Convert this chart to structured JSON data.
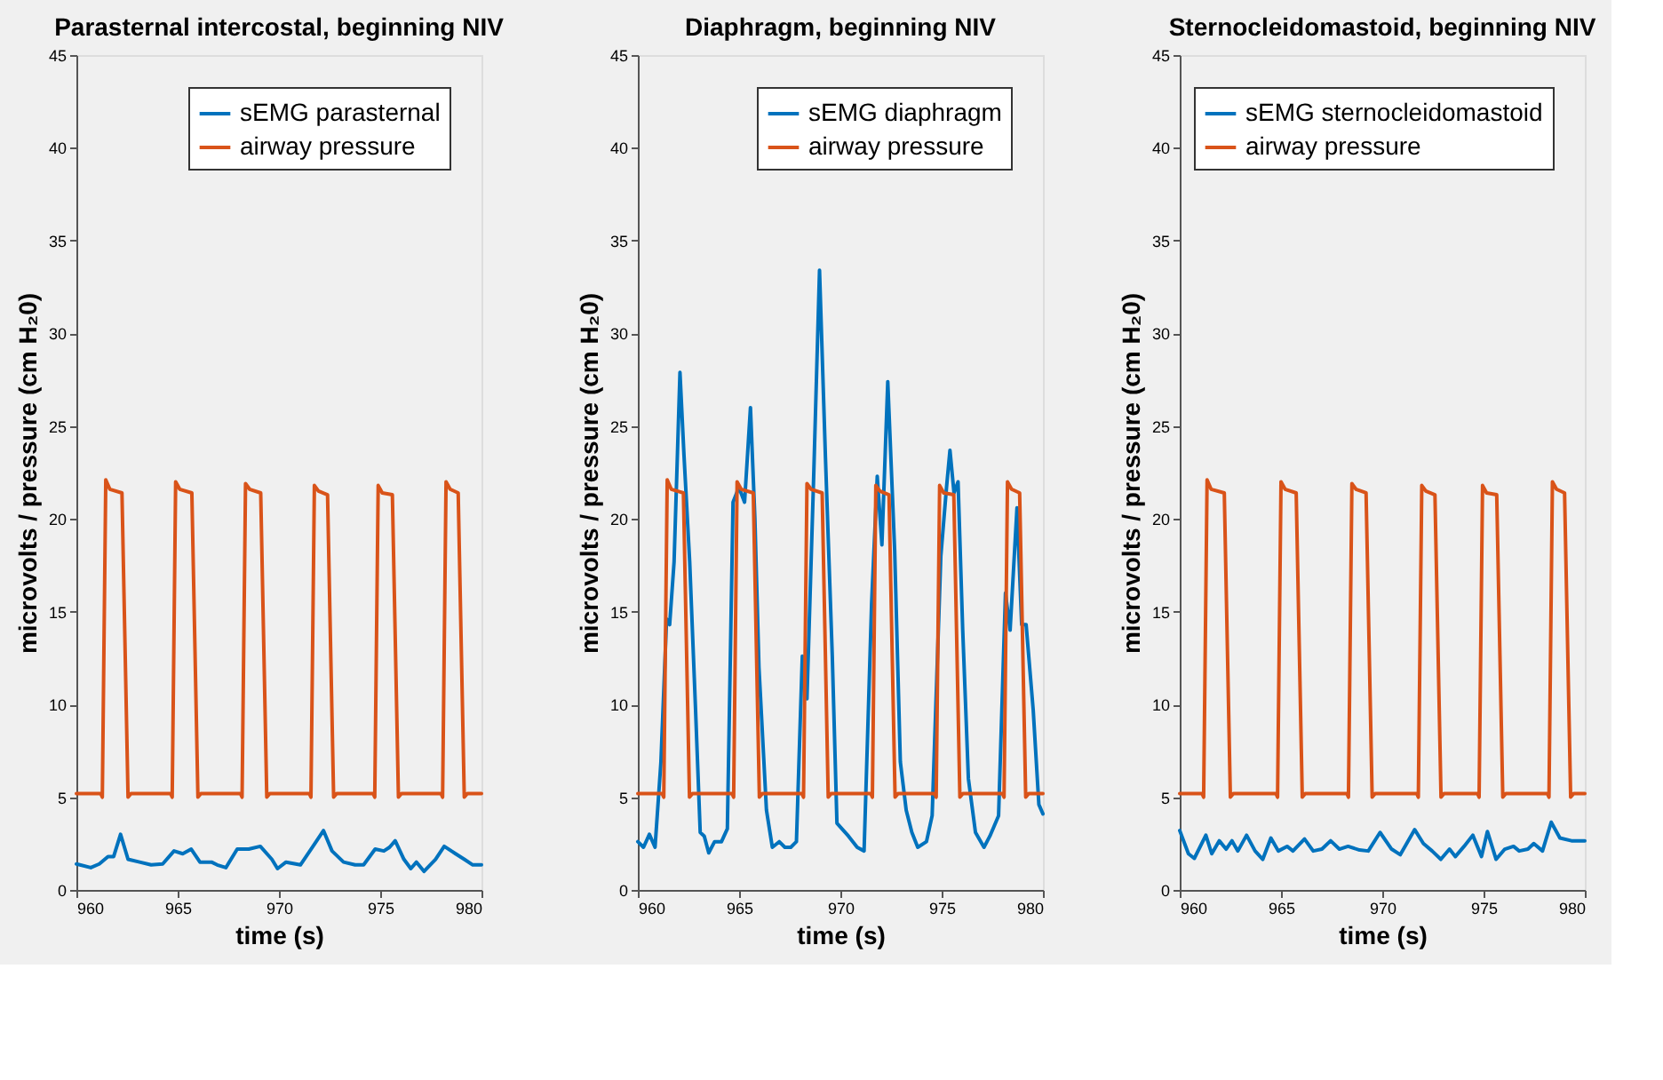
{
  "chart_data": [
    {
      "type": "line",
      "title": "Parasternal intercostal, beginning NIV",
      "xlabel": "time (s)",
      "ylabel": "microvolts / pressure (cm H₂0)",
      "xlim": [
        960,
        980
      ],
      "xticks": [
        960,
        965,
        970,
        975,
        980
      ],
      "ylim": [
        0,
        45
      ],
      "yticks": [
        0,
        5,
        10,
        15,
        20,
        25,
        30,
        35,
        40,
        45
      ],
      "grid": false,
      "legend": "top right",
      "line_style": "solid",
      "marker": "none",
      "series": [
        {
          "name": "sEMG parasternal",
          "color": "#0072bd",
          "x": [
            960,
            960.71,
            961.13,
            961.56,
            961.84,
            962.18,
            962.55,
            963.12,
            963.69,
            964.26,
            964.82,
            965.25,
            965.67,
            966.1,
            966.67,
            966.95,
            967.38,
            967.94,
            968.51,
            969.08,
            969.65,
            969.93,
            970.35,
            971.06,
            971.77,
            972.2,
            972.62,
            973.19,
            973.76,
            974.18,
            974.75,
            975.18,
            975.46,
            975.74,
            976.17,
            976.51,
            976.79,
            977.16,
            977.73,
            978.16,
            978.72,
            979.15,
            979.57,
            980
          ],
          "values": [
            1.4,
            1.2,
            1.4,
            1.8,
            1.8,
            3.0,
            1.65,
            1.5,
            1.35,
            1.4,
            2.1,
            1.95,
            2.2,
            1.5,
            1.5,
            1.35,
            1.2,
            2.2,
            2.2,
            2.35,
            1.65,
            1.15,
            1.5,
            1.35,
            2.5,
            3.2,
            2.1,
            1.5,
            1.35,
            1.35,
            2.2,
            2.1,
            2.3,
            2.65,
            1.65,
            1.15,
            1.5,
            1.0,
            1.65,
            2.35,
            1.95,
            1.65,
            1.35,
            1.35
          ]
        },
        {
          "name": "airway pressure",
          "color": "#d95319",
          "x": [
            960,
            961.2,
            961.28,
            961.45,
            961.65,
            962.25,
            962.55,
            962.7,
            964.65,
            964.73,
            964.9,
            965.1,
            965.7,
            966.0,
            966.15,
            968.1,
            968.18,
            968.35,
            968.55,
            969.1,
            969.4,
            969.55,
            971.5,
            971.58,
            971.75,
            971.95,
            972.4,
            972.7,
            972.85,
            974.65,
            974.73,
            974.9,
            975.1,
            975.6,
            975.9,
            976.05,
            978.0,
            978.08,
            978.25,
            978.45,
            978.85,
            979.15,
            979.3,
            980
          ],
          "values": [
            5.2,
            5.2,
            5.0,
            22.1,
            21.6,
            21.4,
            5.0,
            5.2,
            5.2,
            5.0,
            22.0,
            21.6,
            21.4,
            5.0,
            5.2,
            5.2,
            5.0,
            21.9,
            21.6,
            21.4,
            5.0,
            5.2,
            5.2,
            5.0,
            21.8,
            21.5,
            21.3,
            5.0,
            5.2,
            5.2,
            5.0,
            21.8,
            21.4,
            21.3,
            5.0,
            5.2,
            5.2,
            5.0,
            22.0,
            21.6,
            21.4,
            5.0,
            5.2,
            5.2
          ]
        }
      ]
    },
    {
      "type": "line",
      "title": "Diaphragm, beginning NIV",
      "xlabel": "time (s)",
      "ylabel": "microvolts / pressure (cm H₂0)",
      "xlim": [
        960,
        980
      ],
      "xticks": [
        960,
        965,
        970,
        975,
        980
      ],
      "ylim": [
        0,
        45
      ],
      "yticks": [
        0,
        5,
        10,
        15,
        20,
        25,
        30,
        35,
        40,
        45
      ],
      "grid": false,
      "legend": "top right",
      "line_style": "solid",
      "marker": "none",
      "series": [
        {
          "name": "sEMG diaphragm",
          "color": "#0072bd",
          "x": [
            960,
            960.28,
            960.57,
            960.85,
            961.14,
            961.42,
            961.57,
            961.79,
            962.08,
            962.28,
            962.56,
            962.85,
            963.08,
            963.28,
            963.5,
            963.79,
            964.13,
            964.42,
            964.7,
            964.99,
            965.27,
            965.56,
            965.78,
            965.98,
            966.35,
            966.64,
            966.98,
            967.26,
            967.55,
            967.83,
            968.12,
            968.35,
            968.69,
            968.97,
            969.26,
            969.6,
            969.83,
            970.4,
            970.83,
            971.17,
            971.54,
            971.82,
            972.05,
            972.34,
            972.68,
            972.96,
            973.25,
            973.53,
            973.82,
            974.25,
            974.53,
            974.96,
            975.24,
            975.41,
            975.61,
            975.81,
            976.04,
            976.32,
            976.67,
            977.09,
            977.38,
            977.81,
            978.15,
            978.38,
            978.72,
            978.95,
            979.17,
            979.52,
            979.8,
            980
          ],
          "values": [
            2.6,
            2.3,
            3.0,
            2.3,
            6.9,
            14.6,
            14.3,
            17.7,
            27.9,
            23.4,
            17.7,
            9.7,
            3.1,
            2.9,
            2.0,
            2.6,
            2.6,
            3.3,
            20.9,
            21.7,
            20.9,
            26.0,
            20.0,
            12.0,
            4.3,
            2.3,
            2.6,
            2.3,
            2.3,
            2.6,
            12.6,
            10.3,
            22.6,
            33.4,
            23.4,
            12.6,
            3.6,
            2.9,
            2.3,
            2.1,
            15.4,
            22.3,
            18.6,
            27.4,
            18.3,
            6.9,
            4.3,
            3.1,
            2.3,
            2.6,
            4.0,
            18.0,
            21.7,
            23.7,
            21.4,
            22.0,
            14.0,
            6.0,
            3.1,
            2.3,
            2.9,
            4.0,
            16.0,
            14.0,
            20.6,
            14.3,
            14.3,
            9.7,
            4.6,
            4.1
          ]
        },
        {
          "name": "airway pressure",
          "color": "#d95319",
          "x": [
            960,
            961.2,
            961.28,
            961.45,
            961.65,
            962.25,
            962.55,
            962.7,
            964.65,
            964.73,
            964.9,
            965.1,
            965.7,
            966.0,
            966.15,
            968.1,
            968.18,
            968.35,
            968.55,
            969.1,
            969.4,
            969.55,
            971.5,
            971.58,
            971.75,
            971.95,
            972.4,
            972.7,
            972.85,
            974.65,
            974.73,
            974.9,
            975.1,
            975.6,
            975.9,
            976.05,
            978.0,
            978.08,
            978.25,
            978.45,
            978.85,
            979.15,
            979.3,
            980
          ],
          "values": [
            5.2,
            5.2,
            5.0,
            22.1,
            21.6,
            21.4,
            5.0,
            5.2,
            5.2,
            5.0,
            22.0,
            21.6,
            21.4,
            5.0,
            5.2,
            5.2,
            5.0,
            21.9,
            21.6,
            21.4,
            5.0,
            5.2,
            5.2,
            5.0,
            21.8,
            21.5,
            21.3,
            5.0,
            5.2,
            5.2,
            5.0,
            21.8,
            21.4,
            21.3,
            5.0,
            5.2,
            5.2,
            5.0,
            22.0,
            21.6,
            21.4,
            5.0,
            5.2,
            5.2
          ]
        }
      ]
    },
    {
      "type": "line",
      "title": "Sternocleidomastoid, beginning NIV",
      "xlabel": "time (s)",
      "ylabel": "microvolts / pressure (cm H₂0)",
      "xlim": [
        960,
        980
      ],
      "xticks": [
        960,
        965,
        970,
        975,
        980
      ],
      "ylim": [
        0,
        45
      ],
      "yticks": [
        0,
        5,
        10,
        15,
        20,
        25,
        30,
        35,
        40,
        45
      ],
      "grid": false,
      "legend": "top right",
      "line_style": "solid",
      "marker": "none",
      "series": [
        {
          "name": "sEMG sternocleidomastoid",
          "color": "#0072bd",
          "x": [
            960,
            960.43,
            960.72,
            961.29,
            961.58,
            961.95,
            962.29,
            962.58,
            962.87,
            963.3,
            963.72,
            964.1,
            964.5,
            964.87,
            965.3,
            965.59,
            966.16,
            966.59,
            967.02,
            967.45,
            967.88,
            968.31,
            968.88,
            969.31,
            969.89,
            970.46,
            970.89,
            971.6,
            972.03,
            972.46,
            972.89,
            973.32,
            973.61,
            974.04,
            974.47,
            974.9,
            975.19,
            975.62,
            976.05,
            976.48,
            976.76,
            977.19,
            977.48,
            977.91,
            978.34,
            978.77,
            979.34,
            980
          ],
          "values": [
            3.2,
            1.95,
            1.7,
            2.95,
            1.95,
            2.65,
            2.2,
            2.65,
            2.1,
            2.95,
            2.1,
            1.65,
            2.8,
            2.1,
            2.35,
            2.1,
            2.75,
            2.1,
            2.2,
            2.65,
            2.2,
            2.35,
            2.15,
            2.1,
            3.1,
            2.2,
            1.9,
            3.25,
            2.5,
            2.1,
            1.65,
            2.2,
            1.8,
            2.35,
            2.95,
            1.8,
            3.15,
            1.65,
            2.2,
            2.35,
            2.1,
            2.2,
            2.5,
            2.1,
            3.65,
            2.8,
            2.65,
            2.65
          ]
        },
        {
          "name": "airway pressure",
          "color": "#d95319",
          "x": [
            960,
            961.1,
            961.18,
            961.35,
            961.55,
            962.2,
            962.5,
            962.65,
            964.75,
            964.83,
            965.0,
            965.2,
            965.75,
            966.05,
            966.2,
            968.25,
            968.33,
            968.5,
            968.7,
            969.2,
            969.5,
            969.65,
            971.7,
            971.78,
            971.95,
            972.15,
            972.6,
            972.9,
            973.05,
            974.7,
            974.78,
            974.95,
            975.15,
            975.65,
            975.95,
            976.1,
            978.15,
            978.23,
            978.4,
            978.6,
            979.0,
            979.3,
            979.45,
            980
          ],
          "values": [
            5.2,
            5.2,
            5.0,
            22.1,
            21.6,
            21.4,
            5.0,
            5.2,
            5.2,
            5.0,
            22.0,
            21.6,
            21.4,
            5.0,
            5.2,
            5.2,
            5.0,
            21.9,
            21.6,
            21.4,
            5.0,
            5.2,
            5.2,
            5.0,
            21.8,
            21.5,
            21.3,
            5.0,
            5.2,
            5.2,
            5.0,
            21.8,
            21.4,
            21.3,
            5.0,
            5.2,
            5.2,
            5.0,
            22.0,
            21.6,
            21.4,
            5.0,
            5.2,
            5.2
          ]
        }
      ]
    }
  ]
}
